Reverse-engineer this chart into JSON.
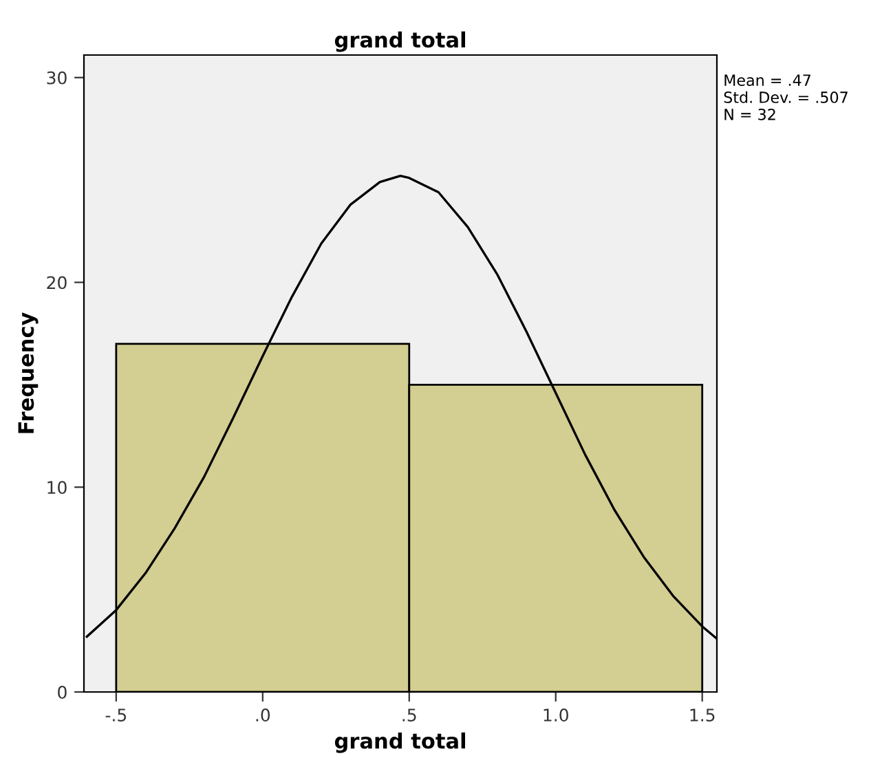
{
  "chart_data": {
    "type": "histogram",
    "title": "grand total",
    "xlabel": "grand total",
    "ylabel": "Frequency",
    "bins": [
      -0.5,
      0.5,
      1.5
    ],
    "values": [
      17,
      15
    ],
    "color": "#d3ce91",
    "series": [
      {
        "type": "line",
        "color": "#000000",
        "x": [
          -0.6,
          -0.5,
          -0.4,
          -0.3,
          -0.2,
          -0.1,
          0,
          0.1,
          0.2,
          0.3,
          0.4,
          0.47,
          0.5,
          0.6,
          0.7,
          0.8,
          0.9,
          1.0,
          1.1,
          1.2,
          1.3,
          1.4,
          1.5,
          1.55
        ],
        "values": [
          2.7,
          4.0,
          5.8,
          8.0,
          10.5,
          13.4,
          16.4,
          19.3,
          21.9,
          23.8,
          24.9,
          25.2,
          25.1,
          24.4,
          22.7,
          20.4,
          17.6,
          14.6,
          11.6,
          8.9,
          6.6,
          4.7,
          3.2,
          2.6
        ]
      }
    ],
    "xlim": [
      -0.61,
      1.55
    ],
    "xticks": [
      {
        "value": -0.5,
        "label": "-.5"
      },
      {
        "value": 0,
        "label": ".0"
      },
      {
        "value": 0.5,
        "label": ".5"
      },
      {
        "value": 1.0,
        "label": "1.0"
      },
      {
        "value": 1.5,
        "label": "1.5"
      }
    ],
    "ylim": [
      0,
      31.1
    ],
    "yticks": [
      0,
      10,
      20,
      30
    ],
    "annotations": [
      "Mean = .47\nStd. Dev. = .507\nN = 32"
    ],
    "grid": false,
    "legend": false
  }
}
